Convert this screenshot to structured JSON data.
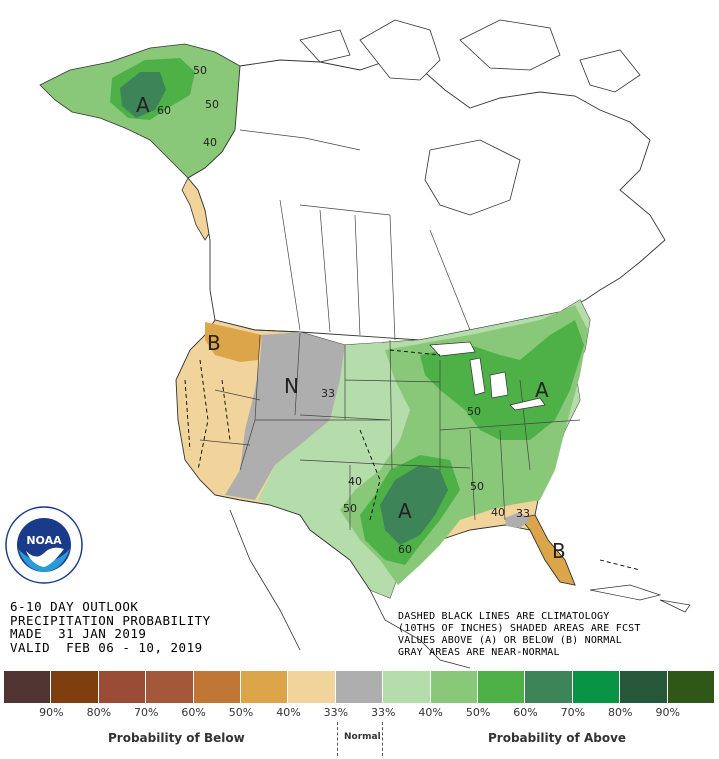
{
  "outlook": {
    "line1": "6-10 DAY OUTLOOK",
    "line2": "PRECIPITATION PROBABILITY",
    "line3": "MADE  31 JAN 2019",
    "line4": "VALID  FEB 06 - 10, 2019"
  },
  "notes": {
    "line1": "DASHED BLACK LINES ARE CLIMATOLOGY",
    "line2": "(10THS OF INCHES) SHADED AREAS ARE FCST",
    "line3": "VALUES ABOVE (A) OR BELOW (B) NORMAL",
    "line4": "GRAY AREAS ARE NEAR-NORMAL"
  },
  "logo": {
    "text": "NOAA",
    "ring_text": "NATIONAL OCEANIC AND ATMOSPHERIC ADMINISTRATION · U.S. DEPARTMENT OF COMMERCE"
  },
  "map_labels": {
    "ak_A": "A",
    "ak_60": "60",
    "ak_50a": "50",
    "ak_50b": "50",
    "ak_40": "40",
    "pnw_B": "B",
    "n_N": "N",
    "mt_33": "33",
    "ne_A": "A",
    "gl_50": "50",
    "tx_40": "40",
    "tx_50": "50",
    "tx_60": "60",
    "ms_A": "A",
    "se_50": "50",
    "se_40": "40",
    "se_33": "33",
    "fl_B": "B"
  },
  "legend": {
    "colors": [
      "#4f3432",
      "#7e3e0f",
      "#9a4b36",
      "#a4583a",
      "#c07635",
      "#dca54a",
      "#f0d49b",
      "#aeaeae",
      "#b5dcab",
      "#89c878",
      "#4db147",
      "#3d8458",
      "#089345",
      "#265738",
      "#2f5718"
    ],
    "labels": [
      "90%",
      "80%",
      "70%",
      "60%",
      "50%",
      "40%",
      "33%",
      "33%",
      "40%",
      "50%",
      "60%",
      "70%",
      "80%",
      "90%"
    ],
    "below_caption": "Probability of Below",
    "normal_caption": "Normal",
    "above_caption": "Probability of Above"
  }
}
